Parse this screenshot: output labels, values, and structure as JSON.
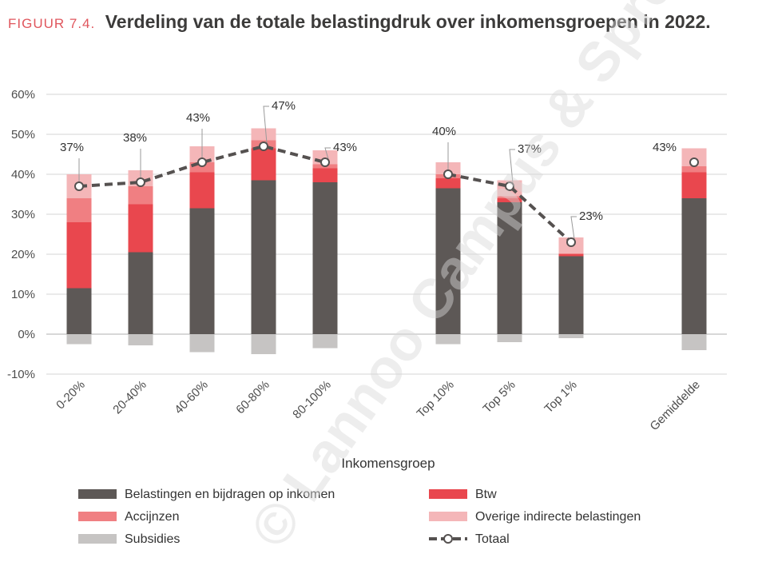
{
  "figure": {
    "label": "FIGUUR 7.4.",
    "title": "Verdeling van de totale belastingdruk over inkomensgroepen in 2022."
  },
  "watermark": "© Lannoo Campus & Spreiden",
  "colors": {
    "inkomen": "#5d5856",
    "btw": "#e9474e",
    "accijnzen": "#f07f82",
    "overige": "#f4b6b8",
    "subsidies": "#c6c4c3",
    "totaal": "#555150",
    "grid": "#e3e3e3",
    "label_red": "#e0565d"
  },
  "chart_data": {
    "type": "bar",
    "stacked": true,
    "title": "Verdeling van de totale belastingdruk over inkomensgroepen in 2022.",
    "xlabel": "Inkomensgroep",
    "ylabel": "",
    "ylim": [
      -10,
      60
    ],
    "yticks": [
      -10,
      0,
      10,
      20,
      30,
      40,
      50,
      60
    ],
    "ytick_labels": [
      "-10%",
      "0%",
      "10%",
      "20%",
      "30%",
      "40%",
      "50%",
      "60%"
    ],
    "grid": true,
    "categories": [
      "0-20%",
      "20-40%",
      "40-60%",
      "60-80%",
      "80-100%",
      "Top 10%",
      "Top 5%",
      "Top 1%",
      "Gemiddelde"
    ],
    "series": [
      {
        "key": "inkomen",
        "name": "Belastingen en bijdragen op inkomen",
        "values": [
          11.5,
          20.5,
          31.5,
          38.5,
          38.0,
          36.5,
          33.0,
          19.5,
          34.0
        ]
      },
      {
        "key": "btw",
        "name": "Btw",
        "values": [
          16.5,
          12.0,
          9.0,
          8.0,
          3.5,
          2.5,
          1.0,
          0.5,
          6.5
        ]
      },
      {
        "key": "accijnzen",
        "name": "Accijnzen",
        "values": [
          6.0,
          4.5,
          2.5,
          2.0,
          1.0,
          1.0,
          0.5,
          0.2,
          1.5
        ]
      },
      {
        "key": "overige",
        "name": "Overige indirecte belastingen",
        "values": [
          6.0,
          4.0,
          4.0,
          3.0,
          3.5,
          3.0,
          4.0,
          4.0,
          4.5
        ]
      },
      {
        "key": "subsidies",
        "name": "Subsidies",
        "values": [
          -2.5,
          -2.8,
          -4.5,
          -5.0,
          -3.5,
          -2.5,
          -2.0,
          -1.0,
          -4.0
        ]
      }
    ],
    "totaal": {
      "name": "Totaal",
      "values": [
        37,
        38,
        43,
        47,
        43,
        40,
        37,
        23,
        43
      ],
      "labels": [
        "37%",
        "38%",
        "43%",
        "47%",
        "43%",
        "40%",
        "37%",
        "23%",
        "43%"
      ],
      "line_groups": [
        [
          0,
          1,
          2,
          3,
          4
        ],
        [
          5,
          6,
          7
        ],
        [
          8
        ]
      ]
    },
    "legend_position": "bottom"
  }
}
